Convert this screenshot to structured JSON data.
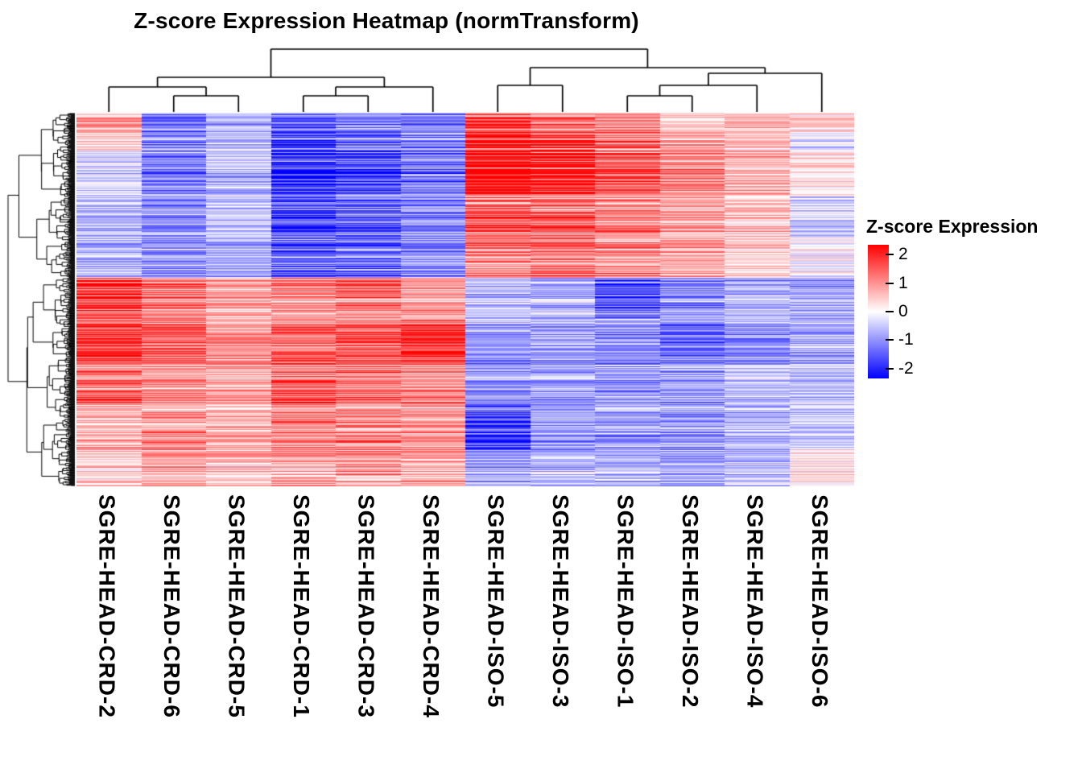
{
  "title": "Z-score Expression Heatmap (normTransform)",
  "legend": {
    "title": "Z-score Expression",
    "ticks": [
      2,
      1,
      0,
      -1,
      -2
    ],
    "color_max": "#FF0000",
    "color_mid": "#FFFFFF",
    "color_min": "#0000FF",
    "bar_value_range": [
      -2.35,
      2.35
    ]
  },
  "chart_data": {
    "type": "heatmap",
    "title": "Z-score Expression Heatmap (normTransform)",
    "value_label": "Z-score Expression",
    "value_range": [
      -2,
      2
    ],
    "legend_position": "right",
    "row_labels_shown": false,
    "row_count_estimate": 700,
    "columns": [
      "SGRE-HEAD-CRD-2",
      "SGRE-HEAD-CRD-6",
      "SGRE-HEAD-CRD-5",
      "SGRE-HEAD-CRD-1",
      "SGRE-HEAD-CRD-3",
      "SGRE-HEAD-CRD-4",
      "SGRE-HEAD-ISO-5",
      "SGRE-HEAD-ISO-3",
      "SGRE-HEAD-ISO-1",
      "SGRE-HEAD-ISO-2",
      "SGRE-HEAD-ISO-4",
      "SGRE-HEAD-ISO-6"
    ],
    "row_blocks": [
      {
        "row_fraction": [
          0.0,
          0.05
        ],
        "means": [
          0.7,
          -1.0,
          -0.5,
          -1.2,
          -0.9,
          -1.0,
          1.3,
          1.1,
          0.9,
          0.4,
          0.6,
          0.5
        ]
      },
      {
        "row_fraction": [
          0.05,
          0.1
        ],
        "means": [
          0.3,
          -0.8,
          -0.4,
          -1.3,
          -1.0,
          -0.9,
          1.7,
          1.5,
          1.0,
          0.7,
          0.5,
          -0.3
        ]
      },
      {
        "row_fraction": [
          0.1,
          0.22
        ],
        "means": [
          -0.3,
          -0.9,
          -0.5,
          -1.5,
          -1.3,
          -1.0,
          1.9,
          1.7,
          1.2,
          0.9,
          0.6,
          0.2
        ]
      },
      {
        "row_fraction": [
          0.22,
          0.33
        ],
        "means": [
          -0.5,
          -0.8,
          -0.5,
          -1.4,
          -1.2,
          -0.9,
          1.3,
          1.2,
          1.0,
          0.8,
          0.5,
          -0.4
        ]
      },
      {
        "row_fraction": [
          0.33,
          0.44
        ],
        "means": [
          -0.6,
          -0.8,
          -0.6,
          -1.2,
          -1.1,
          -0.9,
          1.0,
          1.0,
          0.9,
          0.7,
          0.4,
          -0.1
        ]
      },
      {
        "row_fraction": [
          0.44,
          0.55
        ],
        "means": [
          1.6,
          1.0,
          0.7,
          1.0,
          1.1,
          0.8,
          -0.5,
          -0.6,
          -1.3,
          -0.9,
          -0.6,
          -0.7
        ]
      },
      {
        "row_fraction": [
          0.55,
          0.67
        ],
        "means": [
          1.4,
          1.2,
          0.8,
          1.1,
          1.2,
          1.5,
          -0.7,
          -0.7,
          -0.8,
          -1.0,
          -0.8,
          -0.6
        ]
      },
      {
        "row_fraction": [
          0.67,
          0.78
        ],
        "means": [
          1.2,
          0.9,
          0.7,
          1.2,
          1.1,
          0.9,
          -0.8,
          -0.7,
          -0.8,
          -0.7,
          -0.5,
          -0.5
        ]
      },
      {
        "row_fraction": [
          0.78,
          0.9
        ],
        "means": [
          0.6,
          0.8,
          0.6,
          0.9,
          0.9,
          0.8,
          -1.4,
          -0.8,
          -0.7,
          -0.8,
          -0.6,
          -0.4
        ]
      },
      {
        "row_fraction": [
          0.9,
          1.0
        ],
        "means": [
          0.4,
          0.7,
          0.5,
          0.8,
          0.8,
          0.7,
          -0.7,
          -0.6,
          -0.6,
          -0.7,
          -0.5,
          0.2
        ]
      }
    ],
    "noise": {
      "seed": 1337,
      "row_factor_min": 0.4,
      "row_factor_spread": 1.2,
      "cell_noise": 1.0
    },
    "col_dendrogram": {
      "h": 1.0,
      "children": [
        {
          "h": 0.55,
          "children": [
            {
              "h": 0.4,
              "children": [
                {
                  "leaf": 0
                },
                {
                  "h": 0.26,
                  "children": [
                    {
                      "leaf": 1
                    },
                    {
                      "leaf": 2
                    }
                  ]
                }
              ]
            },
            {
              "h": 0.4,
              "children": [
                {
                  "h": 0.26,
                  "children": [
                    {
                      "leaf": 3
                    },
                    {
                      "leaf": 4
                    }
                  ]
                },
                {
                  "leaf": 5
                }
              ]
            }
          ]
        },
        {
          "h": 0.7,
          "children": [
            {
              "h": 0.42,
              "children": [
                {
                  "leaf": 6
                },
                {
                  "leaf": 7
                }
              ]
            },
            {
              "h": 0.62,
              "children": [
                {
                  "h": 0.42,
                  "children": [
                    {
                      "h": 0.26,
                      "children": [
                        {
                          "leaf": 8
                        },
                        {
                          "leaf": 9
                        }
                      ]
                    },
                    {
                      "leaf": 10
                    }
                  ]
                },
                {
                  "leaf": 11
                }
              ]
            }
          ]
        }
      ]
    },
    "row_dendrogram": {
      "style": "dense",
      "estimated_leaves": 700,
      "main_split_fraction": 0.44
    }
  }
}
